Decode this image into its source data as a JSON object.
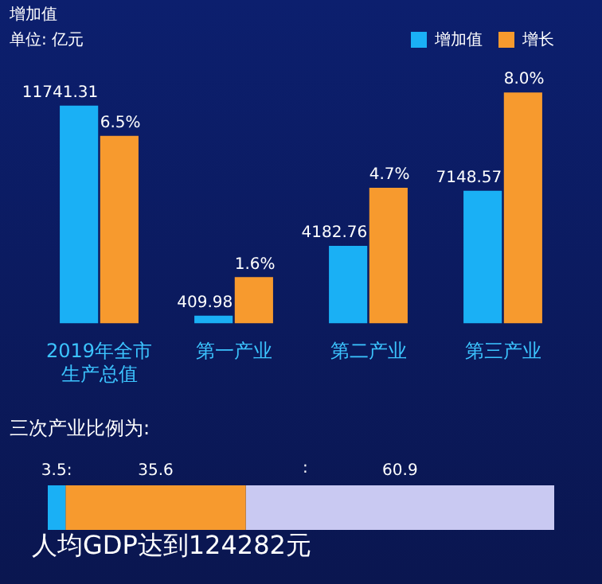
{
  "chart_data": [
    {
      "type": "bar",
      "title": "增加值",
      "subtitle": "单位: 亿元",
      "categories": [
        "2019年全市生产总值",
        "第一产业",
        "第二产业",
        "第三产业"
      ],
      "legend": "top right",
      "tick_labels": "x",
      "series": [
        {
          "name": "增加值",
          "color": "#1ab0f5",
          "values": [
            11741.31,
            409.98,
            4182.76,
            7148.57
          ],
          "value_labels": [
            "11741.31",
            "409.98",
            "4182.76",
            "7148.57"
          ]
        },
        {
          "name": "增长",
          "color": "#f79a2e",
          "axis": "y2",
          "values": [
            6.5,
            1.6,
            4.7,
            8.0
          ],
          "value_labels": [
            "6.5%",
            "1.6%",
            "4.7%",
            "8.0%"
          ]
        }
      ]
    },
    {
      "type": "bar",
      "orientation": "horizontal",
      "stacked": true,
      "title": "三次产业比例为:",
      "categories": [
        null
      ],
      "tick_labels": false,
      "annotations": [
        ":",
        "人均GDP达到124282元"
      ],
      "series": [
        {
          "color": "#1ab0f5",
          "values": [
            3.5
          ],
          "value_labels": [
            "3.5:"
          ]
        },
        {
          "color": "#f79a2e",
          "values": [
            35.6
          ],
          "value_labels": [
            "35.6"
          ]
        },
        {
          "color": "#c9c9f2",
          "values": [
            60.9
          ],
          "value_labels": [
            "60.9"
          ]
        }
      ]
    }
  ]
}
